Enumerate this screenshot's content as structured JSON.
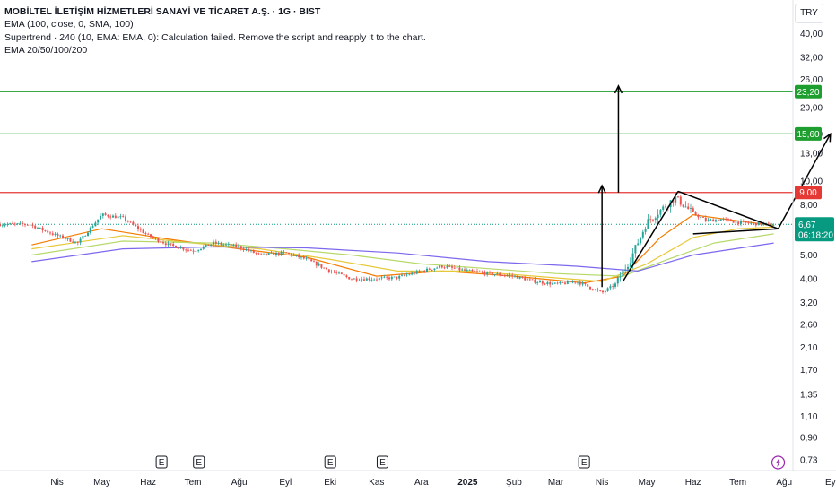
{
  "legend": {
    "title": "MOBİLTEL İLETİŞİM HİZMETLERİ SANAYİ VE TİCARET A.Ş. · 1G · BIST",
    "lines": [
      "EMA (100, close, 0, SMA, 100)",
      "Supertrend · 240 (10, EMA: EMA, 0): Calculation failed. Remove the script and reapply it to the chart.",
      "EMA 20/50/100/200"
    ]
  },
  "currency": "TRY",
  "colors": {
    "up": "#26a69a",
    "down": "#ef5350",
    "green_line": "#1e9e2e",
    "red_line": "#e53935",
    "ema_short": "#f57c00",
    "ema_mid": "#e6c93a",
    "ema_long": "#b7d96b",
    "ema_200": "#7b68ee",
    "drawing": "#000000",
    "last_price": "#089981"
  },
  "chart_data": {
    "type": "candlestick",
    "title": "MOBİLTEL İLETİŞİM HİZMETLERİ SANAYİ VE TİCARET A.Ş. · 1G · BIST",
    "y_scale": "log",
    "ylim": [
      0.7,
      43
    ],
    "y_ticks": [
      "40,00",
      "32,00",
      "26,00",
      "20,00",
      "15,60",
      "13,00",
      "10,00",
      "8,00",
      "5,00",
      "4,00",
      "3,20",
      "2,60",
      "2,10",
      "1,70",
      "1,35",
      "1,10",
      "0,90",
      "0,73"
    ],
    "x_ticks": [
      "Nis",
      "May",
      "Haz",
      "Tem",
      "Ağu",
      "Eyl",
      "Eki",
      "Kas",
      "Ara",
      "2025",
      "Şub",
      "Mar",
      "Nis",
      "May",
      "Haz",
      "Tem",
      "Ağu",
      "Ey"
    ],
    "price_path": [
      [
        "2024-03-15",
        6.6
      ],
      [
        "2024-04-01",
        6.0
      ],
      [
        "2024-04-15",
        5.6
      ],
      [
        "2024-05-01",
        7.3
      ],
      [
        "2024-05-15",
        7.1
      ],
      [
        "2024-06-01",
        6.0
      ],
      [
        "2024-06-15",
        5.5
      ],
      [
        "2024-07-01",
        5.2
      ],
      [
        "2024-07-15",
        5.6
      ],
      [
        "2024-08-01",
        5.4
      ],
      [
        "2024-08-15",
        5.0
      ],
      [
        "2024-09-01",
        5.1
      ],
      [
        "2024-09-15",
        4.8
      ],
      [
        "2024-10-01",
        4.3
      ],
      [
        "2024-10-15",
        4.0
      ],
      [
        "2024-11-01",
        4.0
      ],
      [
        "2024-11-15",
        4.05
      ],
      [
        "2024-12-01",
        4.3
      ],
      [
        "2024-12-15",
        4.5
      ],
      [
        "2025-01-01",
        4.3
      ],
      [
        "2025-01-15",
        4.2
      ],
      [
        "2025-02-01",
        4.1
      ],
      [
        "2025-02-15",
        3.9
      ],
      [
        "2025-03-01",
        3.8
      ],
      [
        "2025-03-15",
        3.9
      ],
      [
        "2025-04-01",
        3.5
      ],
      [
        "2025-04-10",
        3.8
      ],
      [
        "2025-04-20",
        4.8
      ],
      [
        "2025-05-01",
        6.8
      ],
      [
        "2025-05-10",
        7.6
      ],
      [
        "2025-05-20",
        8.6
      ],
      [
        "2025-06-01",
        7.4
      ],
      [
        "2025-06-10",
        6.9
      ],
      [
        "2025-06-20",
        7.0
      ],
      [
        "2025-07-01",
        6.8
      ],
      [
        "2025-07-15",
        6.7
      ],
      [
        "2025-07-25",
        6.67
      ]
    ],
    "series": [
      {
        "name": "EMA 20",
        "points": [
          [
            "2024-03-15",
            5.5
          ],
          [
            "2024-05-01",
            6.4
          ],
          [
            "2024-06-15",
            5.8
          ],
          [
            "2024-08-01",
            5.3
          ],
          [
            "2024-09-15",
            4.9
          ],
          [
            "2024-11-01",
            4.1
          ],
          [
            "2024-12-15",
            4.3
          ],
          [
            "2025-02-01",
            4.1
          ],
          [
            "2025-03-20",
            3.85
          ],
          [
            "2025-04-15",
            4.1
          ],
          [
            "2025-05-10",
            5.9
          ],
          [
            "2025-06-01",
            7.3
          ],
          [
            "2025-07-01",
            6.9
          ],
          [
            "2025-07-25",
            6.6
          ]
        ]
      },
      {
        "name": "EMA 50",
        "points": [
          [
            "2024-03-15",
            5.3
          ],
          [
            "2024-05-15",
            6.0
          ],
          [
            "2024-07-01",
            5.6
          ],
          [
            "2024-08-15",
            5.3
          ],
          [
            "2024-10-01",
            4.8
          ],
          [
            "2024-11-15",
            4.3
          ],
          [
            "2025-01-01",
            4.3
          ],
          [
            "2025-02-15",
            4.1
          ],
          [
            "2025-04-01",
            3.9
          ],
          [
            "2025-05-01",
            4.6
          ],
          [
            "2025-06-01",
            5.9
          ],
          [
            "2025-07-01",
            6.4
          ],
          [
            "2025-07-25",
            6.5
          ]
        ]
      },
      {
        "name": "EMA 100",
        "points": [
          [
            "2024-03-15",
            5.0
          ],
          [
            "2024-05-15",
            5.7
          ],
          [
            "2024-07-15",
            5.6
          ],
          [
            "2024-09-01",
            5.3
          ],
          [
            "2024-10-15",
            5.0
          ],
          [
            "2024-12-01",
            4.6
          ],
          [
            "2025-01-15",
            4.4
          ],
          [
            "2025-03-01",
            4.2
          ],
          [
            "2025-04-15",
            4.1
          ],
          [
            "2025-05-15",
            4.8
          ],
          [
            "2025-06-15",
            5.6
          ],
          [
            "2025-07-25",
            6.1
          ]
        ]
      },
      {
        "name": "EMA 200",
        "points": [
          [
            "2024-03-15",
            4.7
          ],
          [
            "2024-05-15",
            5.3
          ],
          [
            "2024-07-15",
            5.4
          ],
          [
            "2024-09-15",
            5.35
          ],
          [
            "2024-11-15",
            5.1
          ],
          [
            "2025-01-15",
            4.7
          ],
          [
            "2025-03-15",
            4.5
          ],
          [
            "2025-04-25",
            4.3
          ],
          [
            "2025-06-01",
            5.0
          ],
          [
            "2025-07-25",
            5.6
          ]
        ]
      }
    ],
    "horizontal_levels": [
      {
        "value": 23.2,
        "label": "23,20",
        "color": "#1e9e2e"
      },
      {
        "value": 15.6,
        "label": "15,60",
        "color": "#1e9e2e"
      },
      {
        "value": 9.0,
        "label": "9,00",
        "color": "#e53935"
      }
    ],
    "last_price": {
      "value": 6.67,
      "label": "6,67",
      "countdown": "06:18:20"
    },
    "annotations": {
      "drawings": [
        {
          "kind": "arrow",
          "from": [
            "2025-04-01",
            3.7
          ],
          "to": [
            "2025-04-01",
            9.6
          ]
        },
        {
          "kind": "arrow",
          "from": [
            "2025-04-12",
            9.0
          ],
          "to": [
            "2025-04-12",
            24.5
          ]
        },
        {
          "kind": "line",
          "from": [
            "2025-04-15",
            3.9
          ],
          "to": [
            "2025-05-22",
            9.1
          ]
        },
        {
          "kind": "line",
          "from": [
            "2025-05-22",
            9.1
          ],
          "to": [
            "2025-07-28",
            6.4
          ]
        },
        {
          "kind": "line",
          "from": [
            "2025-06-01",
            6.1
          ],
          "to": [
            "2025-07-28",
            6.4
          ]
        },
        {
          "kind": "arrow",
          "from": [
            "2025-07-28",
            6.4
          ],
          "to": [
            "2025-09-01",
            15.6
          ]
        }
      ],
      "event_markers": [
        "E",
        "E",
        "E",
        "E",
        "E"
      ]
    }
  }
}
